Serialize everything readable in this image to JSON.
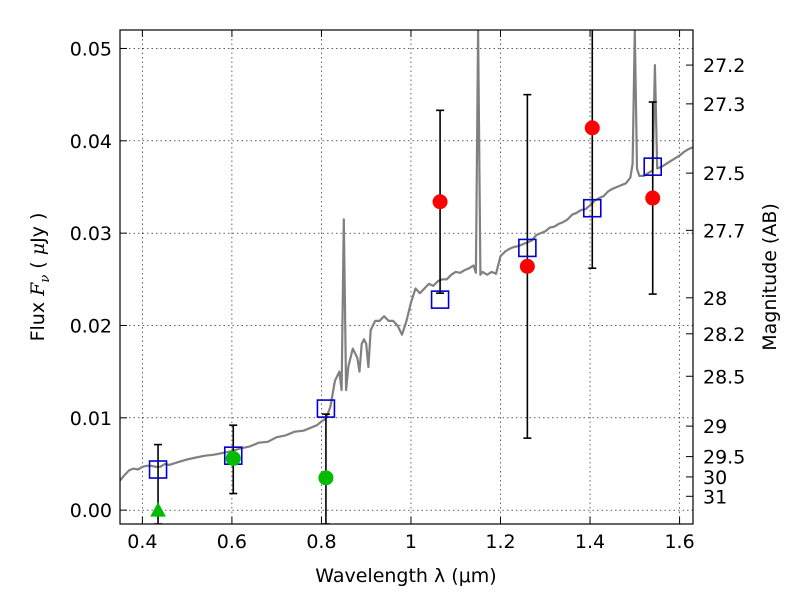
{
  "chart_data": {
    "type": "scatter",
    "title": "",
    "xlabel": "Wavelength  λ (μm)",
    "ylabel": "Flux  F_ν  ( μJy )",
    "ylabel_right": "Magnitude (AB)",
    "xlim": [
      0.35,
      1.63
    ],
    "ylim": [
      -0.0015,
      0.052
    ],
    "x_ticks": [
      0.4,
      0.6,
      0.8,
      1.0,
      1.2,
      1.4,
      1.6
    ],
    "x_tick_labels": [
      "0.4",
      "0.6",
      "0.8",
      "1",
      "1.2",
      "1.4",
      "1.6"
    ],
    "y_ticks": [
      0.0,
      0.01,
      0.02,
      0.03,
      0.04,
      0.05
    ],
    "y_tick_labels": [
      "0.00",
      "0.01",
      "0.02",
      "0.03",
      "0.04",
      "0.05"
    ],
    "right_ticks": [
      {
        "label": "27.2",
        "flux": 0.0482
      },
      {
        "label": "27.3",
        "flux": 0.044
      },
      {
        "label": "27.5",
        "flux": 0.0365
      },
      {
        "label": "27.7",
        "flux": 0.0303
      },
      {
        "label": "28",
        "flux": 0.023
      },
      {
        "label": "28.2",
        "flux": 0.0191
      },
      {
        "label": "28.5",
        "flux": 0.0145
      },
      {
        "label": "29",
        "flux": 0.0091
      },
      {
        "label": "29.5",
        "flux": 0.0058
      },
      {
        "label": "30",
        "flux": 0.0036
      },
      {
        "label": "31",
        "flux": 0.0015
      }
    ],
    "grid": true,
    "colors": {
      "model": "#808080",
      "model_points": "#0000cc",
      "detection": "#ff0000",
      "upper_limit": "#00bb00",
      "error_bar": "#000000"
    },
    "model_spectrum": {
      "x": [
        0.35,
        0.36,
        0.37,
        0.38,
        0.39,
        0.4,
        0.41,
        0.42,
        0.43,
        0.44,
        0.45,
        0.46,
        0.48,
        0.5,
        0.52,
        0.54,
        0.56,
        0.58,
        0.6,
        0.62,
        0.64,
        0.66,
        0.68,
        0.7,
        0.72,
        0.74,
        0.76,
        0.78,
        0.79,
        0.8,
        0.81,
        0.82,
        0.83,
        0.84,
        0.845,
        0.85,
        0.855,
        0.86,
        0.865,
        0.87,
        0.88,
        0.885,
        0.89,
        0.895,
        0.9,
        0.905,
        0.91,
        0.92,
        0.93,
        0.94,
        0.95,
        0.96,
        0.97,
        0.98,
        0.99,
        1.0,
        1.01,
        1.02,
        1.03,
        1.04,
        1.05,
        1.06,
        1.07,
        1.08,
        1.09,
        1.1,
        1.11,
        1.12,
        1.13,
        1.14,
        1.145,
        1.15,
        1.155,
        1.16,
        1.17,
        1.18,
        1.19,
        1.2,
        1.21,
        1.22,
        1.23,
        1.24,
        1.25,
        1.26,
        1.27,
        1.28,
        1.29,
        1.3,
        1.31,
        1.32,
        1.33,
        1.34,
        1.35,
        1.36,
        1.37,
        1.38,
        1.39,
        1.4,
        1.41,
        1.42,
        1.43,
        1.44,
        1.45,
        1.46,
        1.47,
        1.48,
        1.49,
        1.495,
        1.5,
        1.505,
        1.51,
        1.52,
        1.53,
        1.54,
        1.545,
        1.55,
        1.56,
        1.57,
        1.58,
        1.59,
        1.6,
        1.61,
        1.62,
        1.63
      ],
      "y": [
        0.0032,
        0.0038,
        0.0043,
        0.0045,
        0.0044,
        0.0047,
        0.0048,
        0.0048,
        0.0047,
        0.0047,
        0.005,
        0.0049,
        0.0052,
        0.0055,
        0.0057,
        0.0059,
        0.006,
        0.0062,
        0.0064,
        0.0067,
        0.0069,
        0.0073,
        0.0074,
        0.0079,
        0.0081,
        0.0085,
        0.0086,
        0.009,
        0.0092,
        0.0096,
        0.0099,
        0.0112,
        0.014,
        0.015,
        0.013,
        0.0315,
        0.013,
        0.0155,
        0.0165,
        0.0175,
        0.0165,
        0.015,
        0.018,
        0.0185,
        0.018,
        0.0155,
        0.0195,
        0.0205,
        0.0205,
        0.021,
        0.0205,
        0.0205,
        0.02,
        0.019,
        0.0205,
        0.0225,
        0.024,
        0.0235,
        0.024,
        0.0245,
        0.0243,
        0.0248,
        0.025,
        0.025,
        0.0255,
        0.0258,
        0.0257,
        0.026,
        0.0262,
        0.0265,
        0.0257,
        0.052,
        0.0255,
        0.0258,
        0.0255,
        0.0258,
        0.0256,
        0.0275,
        0.028,
        0.0283,
        0.0285,
        0.0286,
        0.0288,
        0.029,
        0.0292,
        0.0298,
        0.03,
        0.0302,
        0.0306,
        0.0307,
        0.031,
        0.0312,
        0.0315,
        0.032,
        0.0322,
        0.0325,
        0.0326,
        0.033,
        0.0335,
        0.0338,
        0.034,
        0.0345,
        0.0348,
        0.035,
        0.0352,
        0.0354,
        0.036,
        0.0375,
        0.052,
        0.037,
        0.0362,
        0.0362,
        0.0365,
        0.0368,
        0.0482,
        0.037,
        0.0372,
        0.0375,
        0.0378,
        0.0381,
        0.0384,
        0.0388,
        0.0391,
        0.0393
      ]
    },
    "model_points": {
      "name": "",
      "x": [
        0.435,
        0.603,
        0.81,
        1.065,
        1.26,
        1.405,
        1.54
      ],
      "y": [
        0.0044,
        0.0059,
        0.011,
        0.0228,
        0.0284,
        0.0327,
        0.0372
      ]
    },
    "detections": {
      "x": [
        1.065,
        1.26,
        1.405,
        1.54
      ],
      "y": [
        0.0334,
        0.0264,
        0.0414,
        0.0338
      ],
      "err_low": [
        0.0235,
        0.0078,
        0.0262,
        0.0234
      ],
      "err_high": [
        0.0433,
        0.045,
        0.053,
        0.0442
      ]
    },
    "upper_limits": {
      "x": [
        0.435,
        0.603,
        0.81
      ],
      "y": [
        0.0,
        0.0056,
        0.0035
      ],
      "marker": [
        "triangle",
        "circle",
        "circle"
      ],
      "err_low": [
        -0.0015,
        0.0018,
        -0.0015
      ],
      "err_high": [
        0.0071,
        0.0092,
        0.0104
      ]
    }
  }
}
